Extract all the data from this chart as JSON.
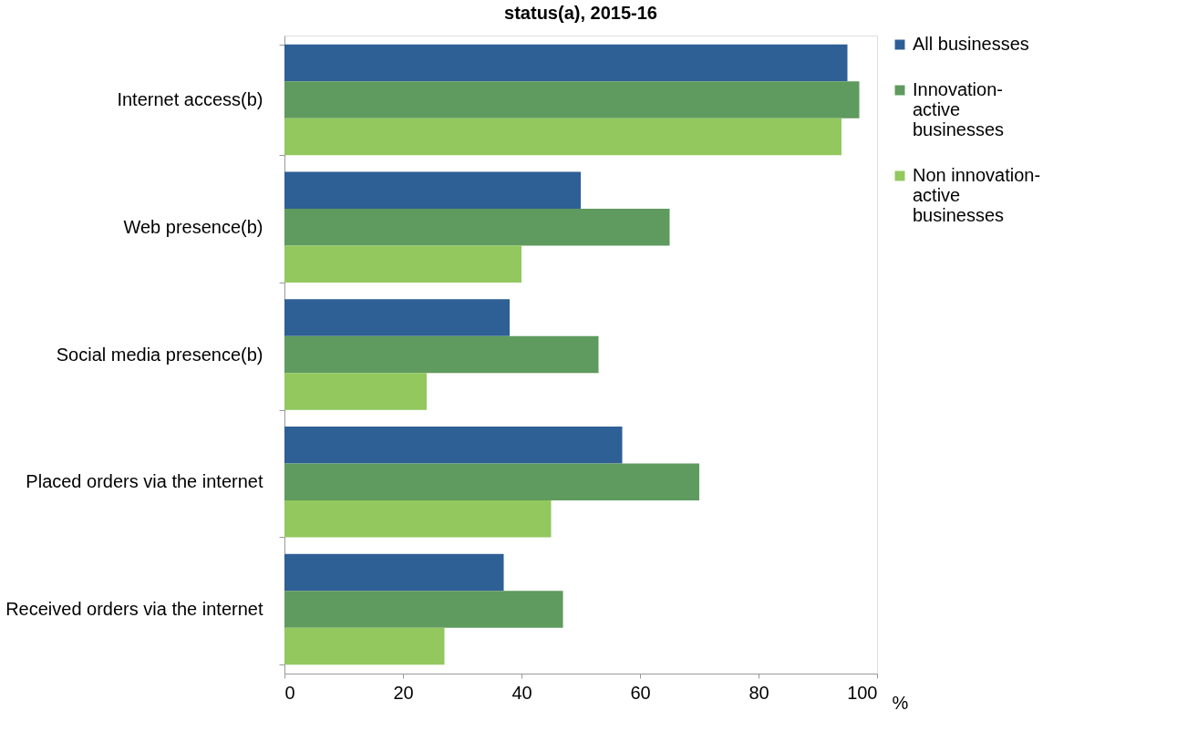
{
  "chart_data": {
    "type": "bar",
    "orientation": "horizontal",
    "title": "status(a), 2015-16",
    "xlabel": "%",
    "categories": [
      "Internet access(b)",
      "Web presence(b)",
      "Social media presence(b)",
      "Placed orders via the internet",
      "Received orders via the internet"
    ],
    "series": [
      {
        "name": "All businesses",
        "color": "#2e5f95",
        "values": [
          95,
          50,
          38,
          57,
          37
        ]
      },
      {
        "name": "Innovation-active businesses",
        "color": "#5f9a5e",
        "values": [
          97,
          65,
          53,
          70,
          47
        ]
      },
      {
        "name": "Non innovation-active businesses",
        "color": "#92c85e",
        "values": [
          94,
          40,
          24,
          45,
          27
        ]
      }
    ],
    "xlim": [
      0,
      100
    ],
    "xticks": [
      0,
      20,
      40,
      60,
      80,
      100
    ],
    "grid": false,
    "legend": "right"
  }
}
